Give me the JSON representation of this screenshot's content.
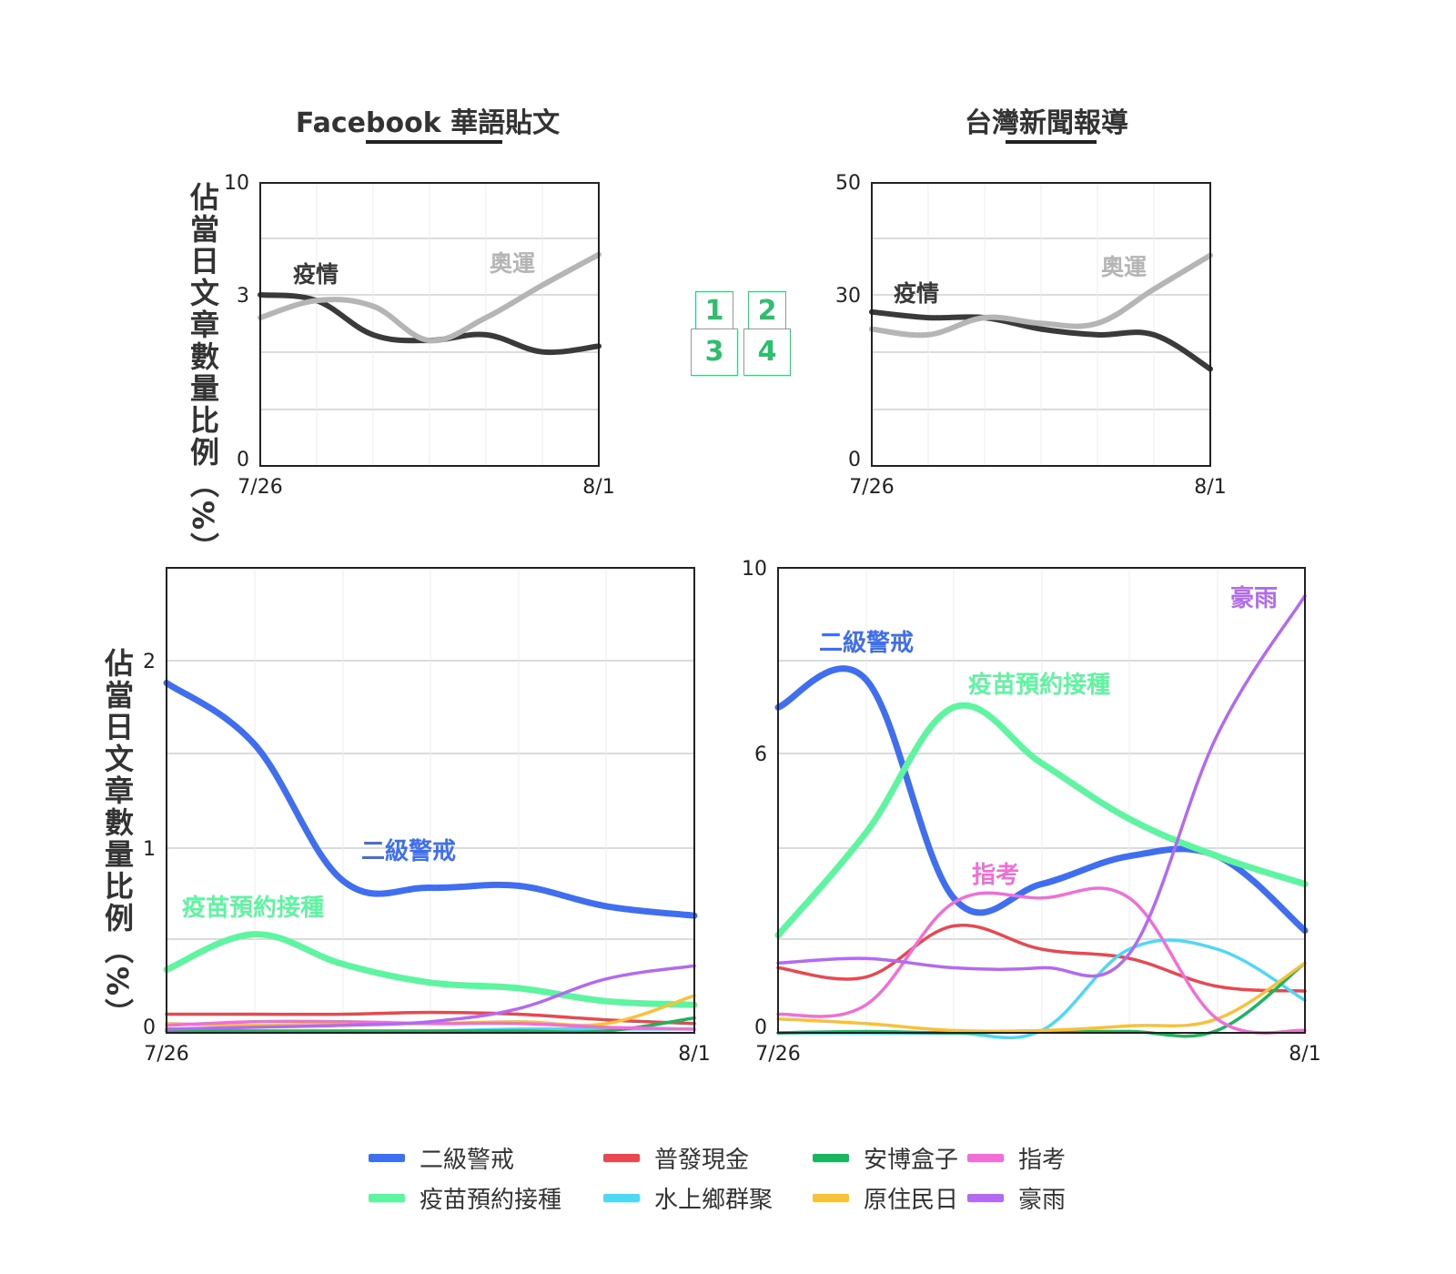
{
  "titles": {
    "left": "Facebook 華語貼文",
    "right": "台灣新聞報導"
  },
  "y_axis_label": "佔當日文章數量比例（%）",
  "panel_keys": [
    "1",
    "2",
    "3",
    "4"
  ],
  "colors": {
    "dark": "#3a3a3a",
    "light": "#b5b5b5",
    "二級警戒": "#3f6ff0",
    "疫苗預約接種": "#5ef5a0",
    "普發現金": "#e8484f",
    "水上鄉群聚": "#4fd8f5",
    "安博盒子": "#1ab55c",
    "原住民日": "#f7c23a",
    "指考": "#f06fd6",
    "豪雨": "#b36af0",
    "grid": "#cfcfcf",
    "key": "#2cbf6c"
  },
  "legend": [
    {
      "name": "二級警戒",
      "color": "#3f6ff0"
    },
    {
      "name": "疫苗預約接種",
      "color": "#5ef5a0"
    },
    {
      "name": "普發現金",
      "color": "#e8484f"
    },
    {
      "name": "水上鄉群聚",
      "color": "#4fd8f5"
    },
    {
      "name": "安博盒子",
      "color": "#1ab55c"
    },
    {
      "name": "原住民日",
      "color": "#f7c23a"
    },
    {
      "name": "指考",
      "color": "#f06fd6"
    },
    {
      "name": "豪雨",
      "color": "#b36af0"
    }
  ],
  "chart_data": [
    {
      "panel": "1",
      "type": "line",
      "x": [
        "7/26",
        "7/27",
        "7/28",
        "7/29",
        "7/30",
        "7/31",
        "8/1"
      ],
      "x_tick_labels": [
        "7/26",
        "8/1"
      ],
      "y_scale": "piecewise",
      "y_ticks": [
        0,
        3,
        10
      ],
      "ylim": [
        0,
        10
      ],
      "series": [
        {
          "name": "疫情",
          "label": "疫情",
          "color": "#3a3a3a",
          "values": [
            3.0,
            2.9,
            2.3,
            2.2,
            2.3,
            2.0,
            2.1
          ]
        },
        {
          "name": "奧運",
          "label": "奧運",
          "color": "#b5b5b5",
          "values": [
            2.6,
            2.9,
            2.8,
            2.2,
            2.6,
            3.6,
            5.5
          ]
        }
      ]
    },
    {
      "panel": "2",
      "type": "line",
      "x": [
        "7/26",
        "7/27",
        "7/28",
        "7/29",
        "7/30",
        "7/31",
        "8/1"
      ],
      "x_tick_labels": [
        "7/26",
        "8/1"
      ],
      "y_scale": "piecewise",
      "y_ticks": [
        0,
        30,
        50
      ],
      "ylim": [
        0,
        50
      ],
      "series": [
        {
          "name": "疫情",
          "label": "疫情",
          "color": "#3a3a3a",
          "values": [
            27,
            26,
            26,
            24,
            23,
            23,
            17
          ]
        },
        {
          "name": "奧運",
          "label": "奧運",
          "color": "#b5b5b5",
          "values": [
            24,
            23,
            26,
            25,
            25,
            31,
            37
          ]
        }
      ]
    },
    {
      "panel": "3",
      "type": "line",
      "x": [
        "7/26",
        "7/27",
        "7/28",
        "7/29",
        "7/30",
        "7/31",
        "8/1"
      ],
      "x_tick_labels": [
        "7/26",
        "8/1"
      ],
      "y_ticks": [
        0,
        1,
        2
      ],
      "ylim": [
        0,
        2.5
      ],
      "labels": [
        "二級警戒",
        "疫苗預約接種"
      ],
      "series": [
        {
          "name": "二級警戒",
          "values": [
            1.88,
            1.55,
            0.82,
            0.78,
            0.79,
            0.68,
            0.63
          ]
        },
        {
          "name": "疫苗預約接種",
          "values": [
            0.34,
            0.53,
            0.37,
            0.27,
            0.24,
            0.17,
            0.15
          ]
        },
        {
          "name": "普發現金",
          "values": [
            0.1,
            0.1,
            0.1,
            0.11,
            0.1,
            0.07,
            0.05
          ]
        },
        {
          "name": "水上鄉群聚",
          "values": [
            0.02,
            0.01,
            0.01,
            0.01,
            0.02,
            0.02,
            0.02
          ]
        },
        {
          "name": "安博盒子",
          "values": [
            0.01,
            0.01,
            0.01,
            0.01,
            0.01,
            0.01,
            0.08
          ]
        },
        {
          "name": "原住民日",
          "values": [
            0.05,
            0.04,
            0.05,
            0.05,
            0.06,
            0.05,
            0.2
          ]
        },
        {
          "name": "指考",
          "values": [
            0.04,
            0.06,
            0.06,
            0.05,
            0.05,
            0.03,
            0.02
          ]
        },
        {
          "name": "豪雨",
          "values": [
            0.02,
            0.03,
            0.04,
            0.06,
            0.13,
            0.29,
            0.36
          ]
        }
      ]
    },
    {
      "panel": "4",
      "type": "line",
      "x": [
        "7/26",
        "7/27",
        "7/28",
        "7/29",
        "7/30",
        "7/31",
        "8/1"
      ],
      "x_tick_labels": [
        "7/26",
        "8/1"
      ],
      "y_ticks": [
        0,
        6,
        10
      ],
      "ylim": [
        0,
        10
      ],
      "labels": [
        "二級警戒",
        "疫苗預約接種",
        "指考",
        "豪雨"
      ],
      "series": [
        {
          "name": "二級警戒",
          "values": [
            7.0,
            7.6,
            2.9,
            3.2,
            3.8,
            3.8,
            2.2
          ]
        },
        {
          "name": "疫苗預約接種",
          "values": [
            2.1,
            4.3,
            7.0,
            5.8,
            4.6,
            3.8,
            3.2
          ]
        },
        {
          "name": "普發現金",
          "values": [
            1.4,
            1.2,
            2.3,
            1.8,
            1.6,
            1.0,
            0.9
          ]
        },
        {
          "name": "水上鄉群聚",
          "values": [
            0.0,
            0.0,
            0.0,
            0.05,
            1.8,
            1.8,
            0.7
          ]
        },
        {
          "name": "安博盒子",
          "values": [
            0.0,
            0.03,
            0.0,
            0.03,
            0.03,
            0.05,
            1.5
          ]
        },
        {
          "name": "原住民日",
          "values": [
            0.3,
            0.2,
            0.05,
            0.05,
            0.15,
            0.3,
            1.5
          ]
        },
        {
          "name": "指考",
          "values": [
            0.4,
            0.6,
            2.8,
            2.9,
            2.9,
            0.3,
            0.05
          ]
        },
        {
          "name": "豪雨",
          "values": [
            1.5,
            1.6,
            1.4,
            1.4,
            1.7,
            6.4,
            9.4
          ]
        }
      ]
    }
  ]
}
